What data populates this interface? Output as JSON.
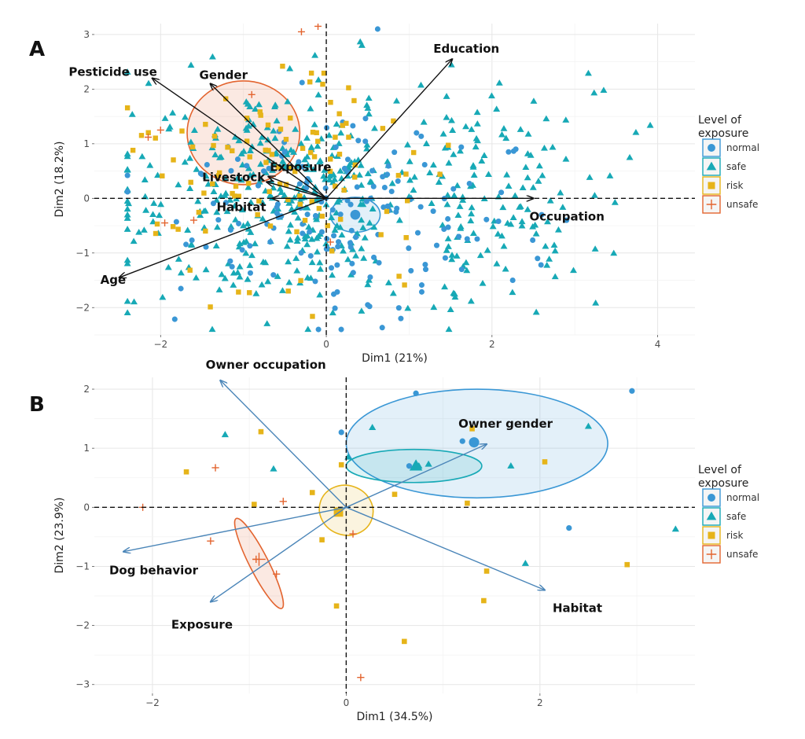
{
  "panels": {
    "a": {
      "letter": "A"
    },
    "b": {
      "letter": "B"
    }
  },
  "colors": {
    "normal": "#3a97d5",
    "safe": "#17a9b6",
    "risk": "#e6b419",
    "unsafe": "#e3642f",
    "arrow_a": "#111111",
    "arrow_b": "#4a85b8"
  },
  "chart_data": [
    {
      "type": "scatter",
      "panel": "A",
      "title": "",
      "xlabel": "Dim1 (21%)",
      "ylabel": "Dim2 (18.2%)",
      "xlim": [
        -2.8,
        4.45
      ],
      "ylim": [
        -2.5,
        3.2
      ],
      "x_ticks": [
        -2,
        0,
        2,
        4
      ],
      "y_ticks": [
        -2,
        -1,
        0,
        1,
        2,
        3
      ],
      "grid": true,
      "legend": {
        "title": [
          "Level of",
          "exposure"
        ],
        "placement": "right",
        "entries": [
          {
            "key": "normal",
            "label": "normal",
            "shape": "circle"
          },
          {
            "key": "safe",
            "label": "safe",
            "shape": "triangle"
          },
          {
            "key": "risk",
            "label": "risk",
            "shape": "square"
          },
          {
            "key": "unsafe",
            "label": "unsafe",
            "shape": "plus"
          }
        ]
      },
      "variables": [
        {
          "name": "Pesticide use",
          "x": -2.1,
          "y": 2.2
        },
        {
          "name": "Gender",
          "x": -1.4,
          "y": 2.1
        },
        {
          "name": "Education",
          "x": 1.52,
          "y": 2.55
        },
        {
          "name": "Exposure",
          "x": -0.7,
          "y": 0.4
        },
        {
          "name": "Livestock",
          "x": -0.72,
          "y": 0.3
        },
        {
          "name": "Habitat",
          "x": -0.65,
          "y": 0.0
        },
        {
          "name": "Occupation",
          "x": 2.5,
          "y": 0.0
        },
        {
          "name": "Age",
          "x": -2.5,
          "y": -1.45
        }
      ],
      "ellipses": [
        {
          "group": "unsafe",
          "cx": -1.0,
          "cy": 1.2,
          "rx": 0.68,
          "ry": 0.95,
          "rotation": 0
        },
        {
          "group": "normal",
          "cx": 0.35,
          "cy": -0.3,
          "rx": 0.3,
          "ry": 0.32,
          "rotation": 0
        }
      ],
      "centroids": [
        {
          "group": "normal",
          "x": 0.35,
          "y": -0.3
        }
      ],
      "points": {
        "unsafe": [
          [
            -0.3,
            3.05
          ],
          [
            -0.1,
            3.15
          ],
          [
            -2.0,
            1.25
          ],
          [
            -2.15,
            1.12
          ],
          [
            -1.95,
            -0.45
          ],
          [
            -1.6,
            -0.4
          ],
          [
            -0.9,
            1.9
          ],
          [
            0.05,
            -0.8
          ]
        ],
        "normal": [
          [
            0.62,
            3.1
          ],
          [
            2.2,
            0.85
          ],
          [
            2.6,
            -0.3
          ],
          [
            2.55,
            -1.1
          ],
          [
            2.9,
            -0.4
          ],
          [
            2.25,
            -1.5
          ],
          [
            1.6,
            -0.7
          ],
          [
            1.2,
            -1.3
          ],
          [
            0.9,
            -2.2
          ],
          [
            0.5,
            -1.95
          ]
        ]
      },
      "point_clouds": [
        {
          "group": "safe",
          "count": 520,
          "center": [
            0.0,
            0.0
          ],
          "spread": [
            1.25,
            1.05
          ],
          "x_range": [
            -2.4,
            4.1
          ],
          "y_range": [
            -2.4,
            2.9
          ]
        },
        {
          "group": "normal",
          "count": 150,
          "center": [
            0.25,
            -0.25
          ],
          "spread": [
            1.0,
            0.9
          ],
          "x_range": [
            -2.4,
            4.1
          ],
          "y_range": [
            -2.4,
            2.9
          ]
        },
        {
          "group": "risk",
          "count": 110,
          "center": [
            -0.6,
            0.4
          ],
          "spread": [
            0.85,
            1.0
          ],
          "x_range": [
            -2.4,
            4.1
          ],
          "y_range": [
            -2.4,
            2.9
          ]
        }
      ]
    },
    {
      "type": "scatter",
      "panel": "B",
      "title": "",
      "xlabel": "Dim1 (34.5%)",
      "ylabel": "Dim2 (23.9%)",
      "xlim": [
        -2.6,
        3.6
      ],
      "ylim": [
        -3.15,
        2.2
      ],
      "x_ticks": [
        -2,
        0,
        2
      ],
      "y_ticks": [
        -3,
        -2,
        -1,
        0,
        1,
        2
      ],
      "grid": true,
      "legend": {
        "title": [
          "Level of",
          "exposure"
        ],
        "placement": "right",
        "entries": [
          {
            "key": "normal",
            "label": "normal",
            "shape": "circle"
          },
          {
            "key": "safe",
            "label": "safe",
            "shape": "triangle"
          },
          {
            "key": "risk",
            "label": "risk",
            "shape": "square"
          },
          {
            "key": "unsafe",
            "label": "unsafe",
            "shape": "plus"
          }
        ]
      },
      "variables": [
        {
          "name": "Owner occupation",
          "x": -1.3,
          "y": 2.15
        },
        {
          "name": "Owner gender",
          "x": 1.45,
          "y": 1.07
        },
        {
          "name": "Dog behavior",
          "x": -2.3,
          "y": -0.75
        },
        {
          "name": "Exposure",
          "x": -1.4,
          "y": -1.6
        },
        {
          "name": "Habitat",
          "x": 2.05,
          "y": -1.4
        }
      ],
      "ellipses": [
        {
          "group": "normal",
          "cx": 1.35,
          "cy": 1.08,
          "rx": 1.35,
          "ry": 0.92,
          "rotation": 0
        },
        {
          "group": "safe",
          "cx": 0.7,
          "cy": 0.7,
          "rx": 0.7,
          "ry": 0.28,
          "rotation": 0
        },
        {
          "group": "risk",
          "cx": 0.0,
          "cy": -0.05,
          "rx": 0.28,
          "ry": 0.42,
          "rotation": -0.33
        },
        {
          "group": "unsafe",
          "cx": -0.9,
          "cy": -0.95,
          "rx": 0.52,
          "ry": 0.16,
          "rotation": -1.1
        }
      ],
      "centroids": [
        {
          "group": "normal",
          "x": 1.32,
          "y": 1.1
        },
        {
          "group": "safe",
          "x": 0.72,
          "y": 0.7
        },
        {
          "group": "risk",
          "x": -0.08,
          "y": -0.08
        },
        {
          "group": "unsafe",
          "x": -0.9,
          "y": -0.88
        }
      ],
      "points": {
        "normal": [
          [
            0.72,
            1.93
          ],
          [
            2.95,
            1.97
          ],
          [
            -0.05,
            1.27
          ],
          [
            2.3,
            -0.35
          ],
          [
            0.65,
            0.7
          ],
          [
            1.2,
            1.12
          ]
        ],
        "safe": [
          [
            -1.25,
            1.23
          ],
          [
            0.27,
            1.35
          ],
          [
            0.85,
            0.73
          ],
          [
            0.75,
            0.7
          ],
          [
            1.7,
            0.7
          ],
          [
            2.5,
            1.37
          ],
          [
            3.4,
            -0.37
          ],
          [
            1.85,
            -0.95
          ],
          [
            -0.75,
            0.65
          ],
          [
            0.02,
            0.85
          ]
        ],
        "risk": [
          [
            -0.88,
            1.28
          ],
          [
            -1.65,
            0.6
          ],
          [
            -0.35,
            0.25
          ],
          [
            -0.05,
            0.72
          ],
          [
            0.5,
            0.22
          ],
          [
            1.3,
            1.33
          ],
          [
            2.05,
            0.77
          ],
          [
            1.25,
            0.07
          ],
          [
            -0.25,
            -0.55
          ],
          [
            1.45,
            -1.08
          ],
          [
            1.42,
            -1.58
          ],
          [
            2.9,
            -0.97
          ],
          [
            -0.1,
            -1.67
          ],
          [
            0.6,
            -2.27
          ],
          [
            -0.95,
            0.05
          ]
        ],
        "unsafe": [
          [
            -2.1,
            0.0
          ],
          [
            -1.35,
            0.67
          ],
          [
            -0.65,
            0.1
          ],
          [
            -1.4,
            -0.57
          ],
          [
            0.07,
            -0.45
          ],
          [
            0.15,
            -2.88
          ],
          [
            -0.93,
            -0.88
          ],
          [
            -0.72,
            -1.13
          ]
        ]
      }
    }
  ]
}
